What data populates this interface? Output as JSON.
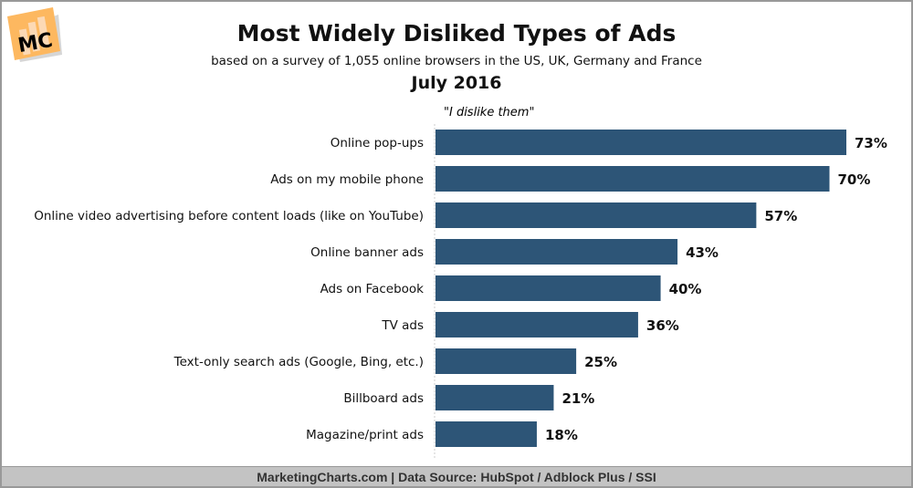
{
  "logo": {
    "text": "MC",
    "color": "#fdb860"
  },
  "footer": "MarketingCharts.com | Data Source: HubSpot / Adblock Plus / SSI",
  "chart_data": {
    "type": "bar",
    "orientation": "horizontal",
    "title": "Most Widely Disliked Types of Ads",
    "subtitle": "based on a survey of 1,055 online browsers in the US, UK, Germany and France",
    "date": "July 2016",
    "series_label": "\"I dislike them\"",
    "categories": [
      "Online pop-ups",
      "Ads on my mobile phone",
      "Online video advertising before content loads (like on YouTube)",
      "Online banner ads",
      "Ads on Facebook",
      "TV ads",
      "Text-only search ads (Google, Bing, etc.)",
      "Billboard ads",
      "Magazine/print ads"
    ],
    "values": [
      73,
      70,
      57,
      43,
      40,
      36,
      25,
      21,
      18
    ],
    "labels": [
      "73%",
      "70%",
      "57%",
      "43%",
      "40%",
      "36%",
      "25%",
      "21%",
      "18%"
    ],
    "xlim": [
      0,
      80
    ],
    "bar_color": "#2d5577",
    "grid": false
  }
}
